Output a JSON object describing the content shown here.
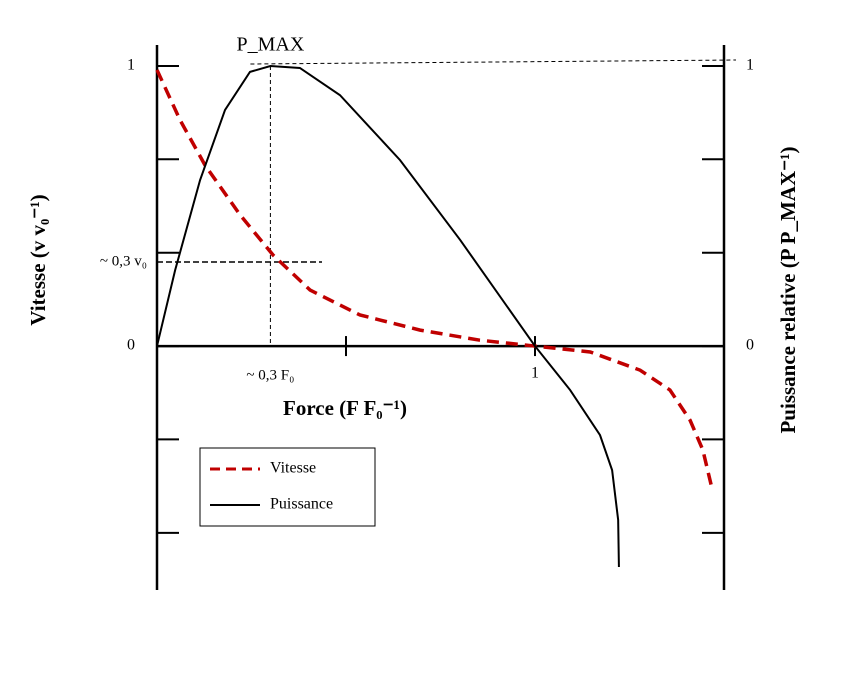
{
  "chart_data": {
    "type": "line",
    "x_label": "Force (F F₀⁻¹)",
    "y_label": "Vitesse (v v₀⁻¹)",
    "y2_label": "Puissance relative (P P_MAX⁻¹)",
    "xlim": [
      0,
      1.5
    ],
    "ylim": [
      -0.871,
      1.075
    ],
    "y2lim": [
      -0.871,
      1.075
    ],
    "xticks": [
      {
        "value": 0.5,
        "label": null
      },
      1
    ],
    "yticks": [
      0,
      1,
      {
        "value": 0.333,
        "label": null
      },
      {
        "value": 0.667,
        "label": null
      },
      {
        "value": -0.333,
        "label": null
      },
      {
        "value": -0.667,
        "label": null
      }
    ],
    "y2ticks": [
      0,
      1,
      {
        "value": 0.333,
        "label": null
      },
      {
        "value": 0.667,
        "label": null
      },
      {
        "value": -0.333,
        "label": null
      },
      {
        "value": -0.667,
        "label": null
      }
    ],
    "annotations": [
      {
        "text": "P_MAX",
        "x": 0.3,
        "y": 1.0
      },
      {
        "text": "~ 0,3 v₀",
        "x": 0,
        "y": 0.3
      },
      {
        "text": "~ 0,3 F₀",
        "x": 0.3,
        "y": 0
      }
    ],
    "legend": "lower left",
    "series": [
      {
        "name": "Vitesse",
        "color": "#c00000",
        "dashed": true,
        "axis": "y",
        "x": [
          0,
          0.061,
          0.127,
          0.22,
          0.307,
          0.405,
          0.537,
          0.696,
          0.854,
          1,
          1.146,
          1.278,
          1.357,
          1.41,
          1.444,
          1.468
        ],
        "values": [
          0.986,
          0.807,
          0.646,
          0.468,
          0.325,
          0.2,
          0.111,
          0.057,
          0.021,
          0,
          -0.021,
          -0.086,
          -0.157,
          -0.264,
          -0.371,
          -0.507
        ]
      },
      {
        "name": "Puissance",
        "color": "#000000",
        "dashed": false,
        "axis": "y2",
        "x": [
          0,
          0.048,
          0.114,
          0.18,
          0.246,
          0.3,
          0.378,
          0.484,
          0.643,
          0.802,
          1,
          1.093,
          1.172,
          1.204,
          1.22,
          1.222
        ],
        "values": [
          0,
          0.271,
          0.593,
          0.843,
          0.979,
          1.0,
          0.993,
          0.896,
          0.664,
          0.379,
          0,
          -0.157,
          -0.318,
          -0.443,
          -0.621,
          -0.789
        ]
      }
    ]
  }
}
